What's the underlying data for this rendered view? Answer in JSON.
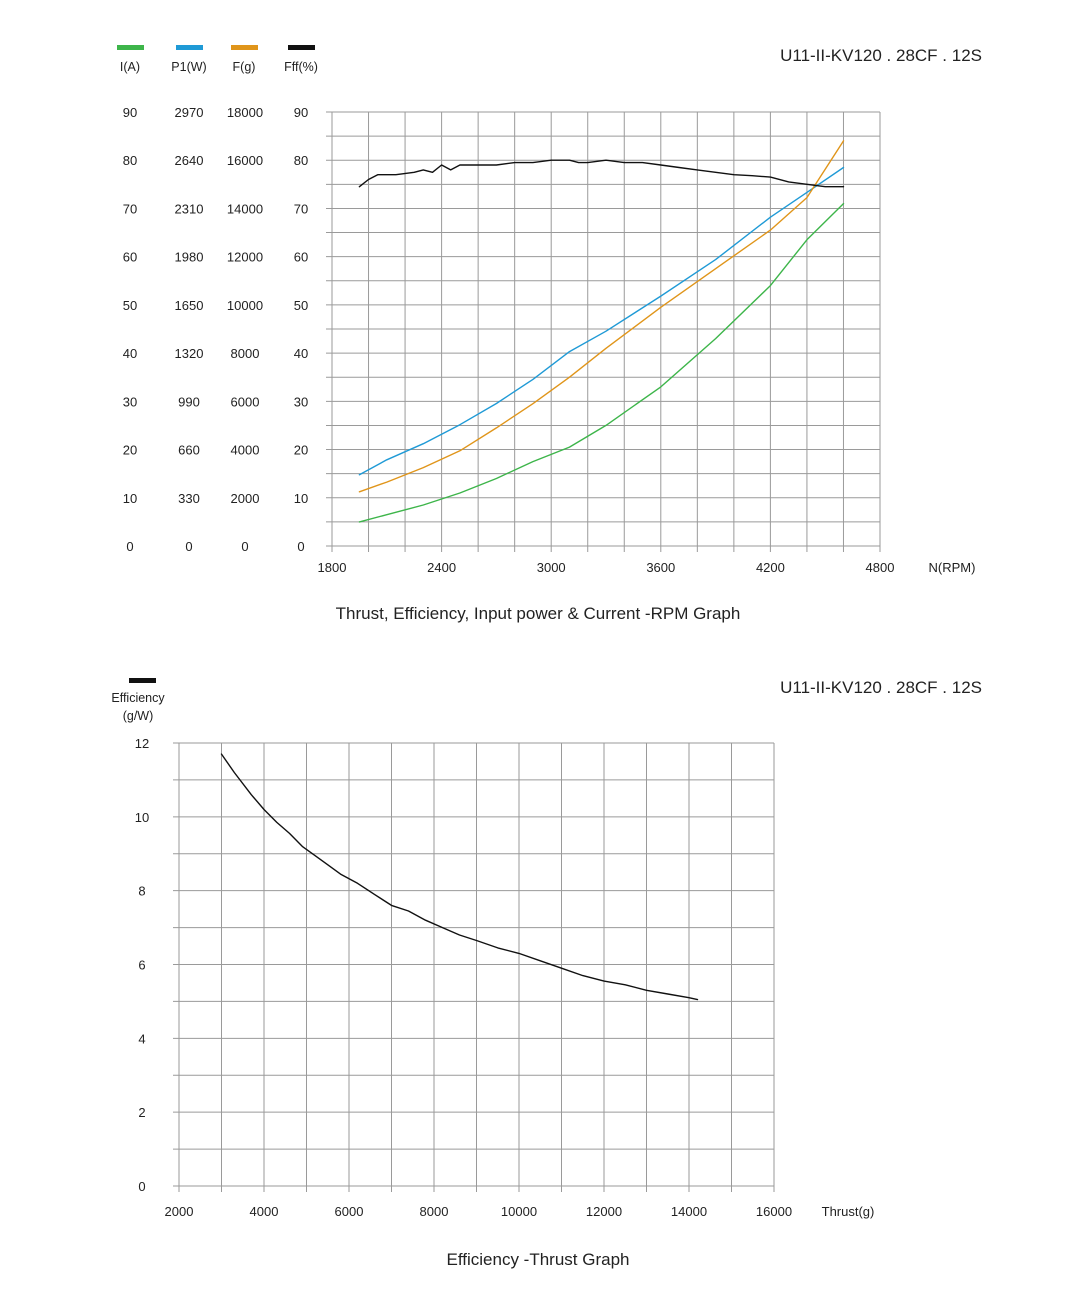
{
  "chart_data": [
    {
      "type": "line",
      "model_label": "U11-II-KV120 . 28CF . 12S",
      "caption": "Thrust, Efficiency, Input power & Current -RPM Graph",
      "xlabel": "N(RPM)",
      "x_ticks": [
        "1800",
        "2400",
        "3000",
        "3600",
        "4200",
        "4800"
      ],
      "xlim": [
        1800,
        4800
      ],
      "grid": true,
      "legend_position": "top-left",
      "axes": [
        {
          "name": "I(A)",
          "ticks": [
            "0",
            "10",
            "20",
            "30",
            "40",
            "50",
            "60",
            "70",
            "80",
            "90"
          ],
          "range": [
            0,
            90
          ]
        },
        {
          "name": "P1(W)",
          "ticks": [
            "0",
            "330",
            "660",
            "990",
            "1320",
            "1650",
            "1980",
            "2310",
            "2640",
            "2970"
          ],
          "range": [
            0,
            2970
          ]
        },
        {
          "name": "F(g)",
          "ticks": [
            "0",
            "2000",
            "4000",
            "6000",
            "8000",
            "10000",
            "12000",
            "14000",
            "16000",
            "18000"
          ],
          "range": [
            0,
            18000
          ]
        },
        {
          "name": "Fff(%)",
          "ticks": [
            "0",
            "10",
            "20",
            "30",
            "40",
            "50",
            "60",
            "70",
            "80",
            "90"
          ],
          "range": [
            0,
            90
          ]
        }
      ],
      "series": [
        {
          "name": "I(A)",
          "color": "#3db54a",
          "x": [
            1950,
            2100,
            2300,
            2500,
            2700,
            2900,
            3100,
            3300,
            3600,
            3900,
            4200,
            4400,
            4600
          ],
          "values": [
            5,
            6.5,
            8.5,
            11,
            14,
            17.5,
            20.5,
            25,
            33,
            43,
            54,
            63.5,
            71
          ]
        },
        {
          "name": "P1(W)",
          "color": "#1f9ad6",
          "x": [
            1950,
            2100,
            2300,
            2500,
            2700,
            2900,
            3100,
            3300,
            3600,
            3900,
            4200,
            4400,
            4600
          ],
          "values": [
            487,
            590,
            700,
            830,
            975,
            1140,
            1330,
            1470,
            1710,
            1960,
            2250,
            2420,
            2590
          ]
        },
        {
          "name": "F(g)",
          "color": "#e0951a",
          "x": [
            1950,
            2100,
            2300,
            2500,
            2700,
            2900,
            3100,
            3300,
            3600,
            3900,
            4200,
            4400,
            4600
          ],
          "values": [
            2250,
            2650,
            3250,
            3950,
            4900,
            5900,
            7000,
            8200,
            9900,
            11500,
            13100,
            14450,
            16800
          ]
        },
        {
          "name": "Fff(%)",
          "color": "#111111",
          "x": [
            1950,
            2000,
            2050,
            2150,
            2250,
            2300,
            2350,
            2400,
            2450,
            2500,
            2600,
            2700,
            2800,
            2900,
            3000,
            3100,
            3150,
            3200,
            3300,
            3400,
            3500,
            3600,
            3700,
            3800,
            3900,
            4000,
            4100,
            4200,
            4300,
            4400,
            4500,
            4600
          ],
          "values": [
            74.5,
            76,
            77,
            77,
            77.5,
            78,
            77.5,
            79,
            78,
            79,
            79,
            79,
            79.5,
            79.5,
            80,
            80,
            79.5,
            79.5,
            80,
            79.5,
            79.5,
            79,
            78.5,
            78,
            77.5,
            77,
            76.8,
            76.5,
            75.5,
            75,
            74.5,
            74.5
          ]
        }
      ]
    },
    {
      "type": "line",
      "model_label": "U11-II-KV120 . 28CF . 12S",
      "caption": "Efficiency -Thrust Graph",
      "xlabel": "Thrust(g)",
      "ylabel": "Efficiency (g/W)",
      "ylabel_lines": [
        "Efficiency",
        "(g/W)"
      ],
      "x_ticks": [
        "2000",
        "4000",
        "6000",
        "8000",
        "10000",
        "12000",
        "14000",
        "16000"
      ],
      "y_ticks": [
        "0",
        "2",
        "4",
        "6",
        "8",
        "10",
        "12"
      ],
      "xlim": [
        2000,
        16000
      ],
      "ylim": [
        0,
        12
      ],
      "grid": true,
      "legend_position": "top-left",
      "series": [
        {
          "name": "Efficiency (g/W)",
          "color": "#111111",
          "x": [
            3000,
            3300,
            3700,
            4000,
            4300,
            4600,
            4900,
            5200,
            5500,
            5800,
            6200,
            6600,
            7000,
            7400,
            7800,
            8200,
            8600,
            9000,
            9500,
            10000,
            10500,
            11000,
            11500,
            12000,
            12500,
            13000,
            13500,
            14000,
            14200
          ],
          "values": [
            11.7,
            11.2,
            10.6,
            10.2,
            9.85,
            9.55,
            9.2,
            8.95,
            8.7,
            8.45,
            8.2,
            7.9,
            7.6,
            7.45,
            7.2,
            7.0,
            6.8,
            6.65,
            6.45,
            6.3,
            6.1,
            5.9,
            5.7,
            5.55,
            5.45,
            5.3,
            5.2,
            5.1,
            5.05
          ]
        }
      ]
    }
  ]
}
